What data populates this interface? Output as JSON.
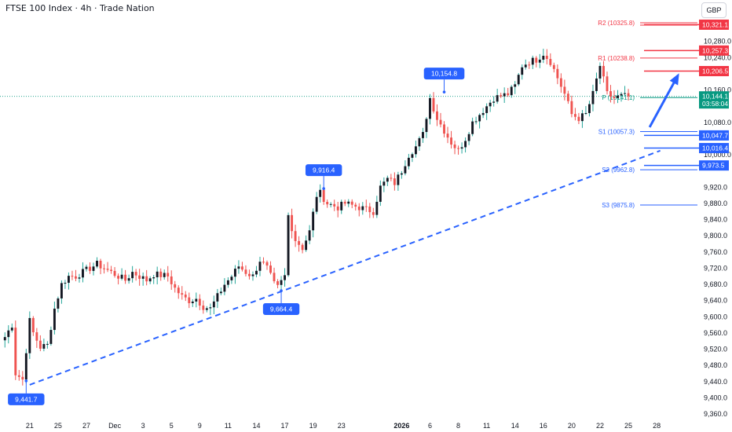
{
  "header": {
    "title": "FTSE 100 Index · 4h · Trade Nation",
    "currency": "GBP"
  },
  "colors": {
    "up": "#26a69a",
    "down": "#ef5350",
    "candle_body": "#131722",
    "price_line": "#089981",
    "resistance": "#f23645",
    "support": "#2962ff",
    "trendline": "#2962ff",
    "callout": "#2962ff"
  },
  "chart_data": {
    "type": "candlestick",
    "title": "FTSE 100 Index · 4h · Trade Nation",
    "ylim": [
      9340,
      10360
    ],
    "y_ticks": [
      "10,280.0",
      "10,240.0",
      "10,160.0",
      "10,080.0",
      "10,000.0",
      "9,920.0",
      "9,880.0",
      "9,840.0",
      "9,800.0",
      "9,760.0",
      "9,720.0",
      "9,680.0",
      "9,640.0",
      "9,600.0",
      "9,560.0",
      "9,520.0",
      "9,480.0",
      "9,440.0",
      "9,400.0",
      "9,360.0"
    ],
    "x_ticks": [
      {
        "label": "21",
        "bar": 7
      },
      {
        "label": "25",
        "bar": 15
      },
      {
        "label": "27",
        "bar": 23
      },
      {
        "label": "Dec",
        "bar": 31
      },
      {
        "label": "3",
        "bar": 39
      },
      {
        "label": "5",
        "bar": 47
      },
      {
        "label": "9",
        "bar": 55
      },
      {
        "label": "11",
        "bar": 63
      },
      {
        "label": "14",
        "bar": 71
      },
      {
        "label": "17",
        "bar": 79
      },
      {
        "label": "19",
        "bar": 87
      },
      {
        "label": "23",
        "bar": 95
      },
      {
        "label": "2026",
        "bar": 112,
        "bold": true
      },
      {
        "label": "6",
        "bar": 120
      },
      {
        "label": "8",
        "bar": 128
      },
      {
        "label": "11",
        "bar": 136
      },
      {
        "label": "14",
        "bar": 144
      },
      {
        "label": "16",
        "bar": 152
      },
      {
        "label": "20",
        "bar": 160
      },
      {
        "label": "22",
        "bar": 168
      },
      {
        "label": "25",
        "bar": 176
      },
      {
        "label": "28",
        "bar": 184
      }
    ],
    "bars_total": 196,
    "anchors": [
      [
        0,
        9550
      ],
      [
        2,
        9580
      ],
      [
        3,
        9460
      ],
      [
        5,
        9445
      ],
      [
        7,
        9590
      ],
      [
        8,
        9560
      ],
      [
        10,
        9525
      ],
      [
        12,
        9530
      ],
      [
        14,
        9620
      ],
      [
        16,
        9680
      ],
      [
        18,
        9700
      ],
      [
        20,
        9700
      ],
      [
        24,
        9720
      ],
      [
        26,
        9730
      ],
      [
        28,
        9720
      ],
      [
        31,
        9705
      ],
      [
        34,
        9690
      ],
      [
        36,
        9710
      ],
      [
        38,
        9700
      ],
      [
        40,
        9690
      ],
      [
        42,
        9705
      ],
      [
        46,
        9700
      ],
      [
        48,
        9670
      ],
      [
        50,
        9650
      ],
      [
        52,
        9640
      ],
      [
        54,
        9645
      ],
      [
        56,
        9625
      ],
      [
        58,
        9620
      ],
      [
        60,
        9650
      ],
      [
        62,
        9680
      ],
      [
        64,
        9700
      ],
      [
        66,
        9725
      ],
      [
        68,
        9710
      ],
      [
        70,
        9700
      ],
      [
        72,
        9740
      ],
      [
        74,
        9720
      ],
      [
        76,
        9680
      ],
      [
        77,
        9672
      ],
      [
        79,
        9700
      ],
      [
        80,
        9850
      ],
      [
        82,
        9790
      ],
      [
        84,
        9770
      ],
      [
        86,
        9810
      ],
      [
        88,
        9900
      ],
      [
        89,
        9905
      ],
      [
        91,
        9880
      ],
      [
        94,
        9870
      ],
      [
        96,
        9880
      ],
      [
        98,
        9875
      ],
      [
        100,
        9870
      ],
      [
        104,
        9860
      ],
      [
        106,
        9920
      ],
      [
        108,
        9940
      ],
      [
        110,
        9930
      ],
      [
        112,
        9960
      ],
      [
        114,
        10000
      ],
      [
        116,
        10020
      ],
      [
        118,
        10050
      ],
      [
        120,
        10140
      ],
      [
        122,
        10090
      ],
      [
        124,
        10060
      ],
      [
        126,
        10030
      ],
      [
        128,
        10010
      ],
      [
        130,
        10040
      ],
      [
        132,
        10080
      ],
      [
        134,
        10100
      ],
      [
        136,
        10120
      ],
      [
        138,
        10140
      ],
      [
        142,
        10150
      ],
      [
        144,
        10170
      ],
      [
        146,
        10220
      ],
      [
        148,
        10230
      ],
      [
        150,
        10235
      ],
      [
        152,
        10250
      ],
      [
        154,
        10230
      ],
      [
        156,
        10190
      ],
      [
        158,
        10150
      ],
      [
        160,
        10100
      ],
      [
        162,
        10090
      ],
      [
        164,
        10100
      ],
      [
        166,
        10150
      ],
      [
        168,
        10220
      ],
      [
        170,
        10150
      ],
      [
        172,
        10140
      ],
      [
        174,
        10145
      ],
      [
        176,
        10144
      ]
    ],
    "current_price": "10,144.1",
    "countdown": "03:58:04",
    "price_tags": [
      {
        "label": "10,321.1",
        "y": 10321.1,
        "color": "#f23645"
      },
      {
        "label": "10,257.3",
        "y": 10257.3,
        "color": "#f23645"
      },
      {
        "label": "10,206.5",
        "y": 10206.5,
        "color": "#f23645"
      },
      {
        "label": "10,047.7",
        "y": 10047.7,
        "color": "#2962ff"
      },
      {
        "label": "10,016.4",
        "y": 10016.4,
        "color": "#2962ff"
      },
      {
        "label": "9,973.5",
        "y": 9973.5,
        "color": "#2962ff"
      }
    ],
    "pivots": [
      {
        "label": "R2 (10325.8)",
        "y": 10325.8,
        "color": "#f23645"
      },
      {
        "label": "R1 (10238.8)",
        "y": 10238.8,
        "color": "#f23645"
      },
      {
        "label": "P (10141.1)",
        "y": 10141.1,
        "color": "#089981"
      },
      {
        "label": "S1 (10057.3)",
        "y": 10057.3,
        "color": "#2962ff"
      },
      {
        "label": "S2 (9962.8)",
        "y": 9962.8,
        "color": "#2962ff"
      },
      {
        "label": "S3 (9875.8)",
        "y": 9875.8,
        "color": "#2962ff"
      }
    ],
    "callouts": [
      {
        "label": "9,441.7",
        "bar": 6,
        "price": 9441.7,
        "position": "below"
      },
      {
        "label": "9,664.4",
        "bar": 78,
        "price": 9664.4,
        "position": "below"
      },
      {
        "label": "9,916.4",
        "bar": 90,
        "price": 9916.4,
        "position": "above"
      },
      {
        "label": "10,154.8",
        "bar": 124,
        "price": 10154.8,
        "position": "above"
      }
    ],
    "trendline": {
      "from": {
        "bar": 7,
        "price": 9432
      },
      "to": {
        "bar": 185,
        "price": 10010
      }
    },
    "projection_arrow": {
      "from": {
        "bar": 182,
        "price": 10068
      },
      "to": {
        "bar": 190,
        "price": 10196
      }
    }
  }
}
